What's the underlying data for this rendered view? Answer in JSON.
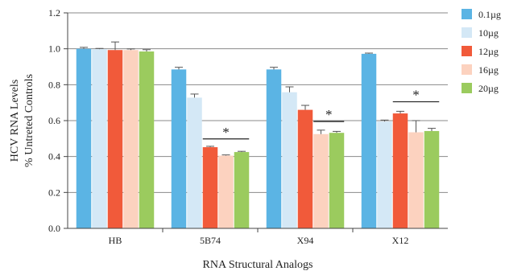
{
  "chart_data": {
    "type": "bar",
    "title": "",
    "xlabel": "RNA Structural Analogs",
    "ylabel_lines": [
      "HCV RNA Levels",
      "% Untreted Controls"
    ],
    "ylim": [
      0,
      1.2
    ],
    "yticks": [
      "0.0",
      "0.2",
      "0.4",
      "0.6",
      "0.8",
      "1.0",
      "1.2"
    ],
    "grid": true,
    "legend_position": "right",
    "categories": [
      "HB",
      "5B74",
      "X94",
      "X12"
    ],
    "series": [
      {
        "name": "0.1µg",
        "color": "#5bb4e4",
        "values": [
          1.0,
          0.885,
          0.885,
          0.972
        ],
        "errors": [
          0.008,
          0.012,
          0.012,
          0.004
        ]
      },
      {
        "name": "10µg",
        "color": "#d4e8f6",
        "values": [
          0.998,
          0.728,
          0.758,
          0.595
        ],
        "errors": [
          0.004,
          0.02,
          0.03,
          0.008
        ]
      },
      {
        "name": "12µg",
        "color": "#f15a3a",
        "values": [
          0.993,
          0.452,
          0.66,
          0.64
        ],
        "errors": [
          0.045,
          0.005,
          0.025,
          0.012
        ]
      },
      {
        "name": "16µg",
        "color": "#fcd2bf",
        "values": [
          0.993,
          0.405,
          0.525,
          0.535
        ],
        "errors": [
          0.006,
          0.004,
          0.022,
          0.065
        ]
      },
      {
        "name": "20µg",
        "color": "#9bcb5e",
        "values": [
          0.985,
          0.425,
          0.532,
          0.542
        ],
        "errors": [
          0.01,
          0.004,
          0.008,
          0.015
        ]
      }
    ],
    "annotations": [
      {
        "category": "5B74",
        "from_series": 2,
        "to_series": 4,
        "y": 0.498,
        "label": "*"
      },
      {
        "category": "X94",
        "from_series": 3,
        "to_series": 4,
        "y": 0.595,
        "label": "*"
      },
      {
        "category": "X12",
        "from_series": 2,
        "to_series": 4,
        "y": 0.705,
        "label": "*"
      }
    ]
  }
}
